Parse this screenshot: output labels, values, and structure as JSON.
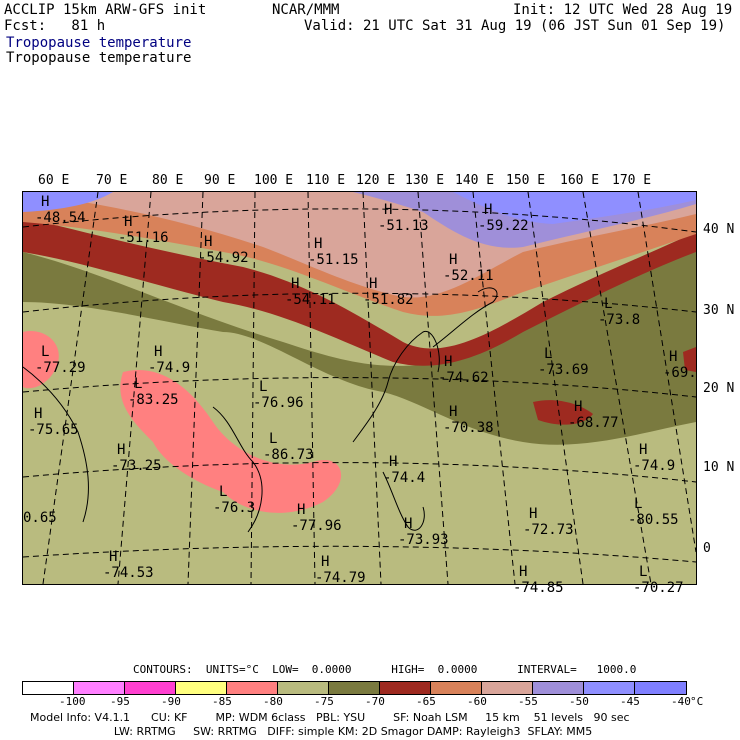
{
  "header": {
    "model_line": "ACCLIP 15km ARW-GFS init",
    "center": "NCAR/MMM",
    "init": "Init: 12 UTC Wed 28 Aug 19",
    "fcst": "Fcst:   81 h",
    "valid": "Valid: 21 UTC Sat 31 Aug 19 (06 JST Sun 01 Sep 19)",
    "field_1": "Tropopause temperature",
    "field_2": "Tropopause temperature"
  },
  "lon_labels": [
    "60 E",
    "70 E",
    "80 E",
    "90 E",
    "100 E",
    "110 E",
    "120 E",
    "130 E",
    "140 E",
    "150 E",
    "160 E",
    "170 E"
  ],
  "lat_labels": [
    "40 N",
    "30 N",
    "20 N",
    "10 N",
    "0"
  ],
  "map_labels": [
    {
      "h": "H",
      "v": "-48.54"
    },
    {
      "h": "H",
      "v": "-51.16"
    },
    {
      "h": "H",
      "v": "-54.92"
    },
    {
      "h": "H",
      "v": "-51.15"
    },
    {
      "h": "H",
      "v": "-51.13"
    },
    {
      "h": "H",
      "v": "-59.22"
    },
    {
      "h": "H",
      "v": "-52.11"
    },
    {
      "h": "H",
      "v": "-54.11"
    },
    {
      "h": "H",
      "v": "-51.82"
    },
    {
      "h": "L",
      "v": "-73.8"
    },
    {
      "h": "H",
      "v": "-69."
    },
    {
      "h": "L",
      "v": "-77.29"
    },
    {
      "h": "H",
      "v": "-74.9"
    },
    {
      "h": "L",
      "v": "-83.25"
    },
    {
      "h": "L",
      "v": "-76.96"
    },
    {
      "h": "H",
      "v": "-74.62"
    },
    {
      "h": "L",
      "v": "-73.69"
    },
    {
      "h": "H",
      "v": "-75.65"
    },
    {
      "h": "H",
      "v": "-70.38"
    },
    {
      "h": "H",
      "v": "-68.77"
    },
    {
      "h": "H",
      "v": "-73.25"
    },
    {
      "h": "L",
      "v": "-86.73"
    },
    {
      "h": "H",
      "v": "-74.4"
    },
    {
      "h": "H",
      "v": "-74.9"
    },
    {
      "h": "L",
      "v": "-76.3"
    },
    {
      "h": "H",
      "v": "-77.96"
    },
    {
      "h": "H",
      "v": "-72.73"
    },
    {
      "h": "L",
      "v": "-80.55"
    },
    {
      "h": "",
      "v": "0.65"
    },
    {
      "h": "H",
      "v": "-73.93"
    },
    {
      "h": "H",
      "v": "-74.53"
    },
    {
      "h": "H",
      "v": "-74.79"
    },
    {
      "h": "H",
      "v": "-74.85"
    },
    {
      "h": "L",
      "v": "-70.27"
    }
  ],
  "contours": "CONTOURS:  UNITS=°C  LOW=  0.0000      HIGH=  0.0000      INTERVAL=   1000.0",
  "legend": {
    "colors": [
      "#ffffff",
      "#ff7fff",
      "#ff40d0",
      "#ffff7f",
      "#ff8080",
      "#b9bb7f",
      "#7a7a3f",
      "#9e2a20",
      "#d8825a",
      "#d9a59a",
      "#9f8fd9",
      "#8f8fff",
      "#7f7fff"
    ],
    "ticks": [
      "-100",
      "-95",
      "-90",
      "-85",
      "-80",
      "-75",
      "-70",
      "-65",
      "-60",
      "-55",
      "-50",
      "-45",
      "-40"
    ],
    "unit": "°C"
  },
  "footer": {
    "line1": "Model Info: V4.1.1      CU: KF        MP: WDM 6class   PBL: YSU        SF: Noah LSM     15 km    51 levels   90 sec",
    "line2": "                        LW: RRTMG     SW: RRTMG   DIFF: simple KM: 2D Smagor DAMP: Rayleigh3  SFLAY: MM5"
  }
}
